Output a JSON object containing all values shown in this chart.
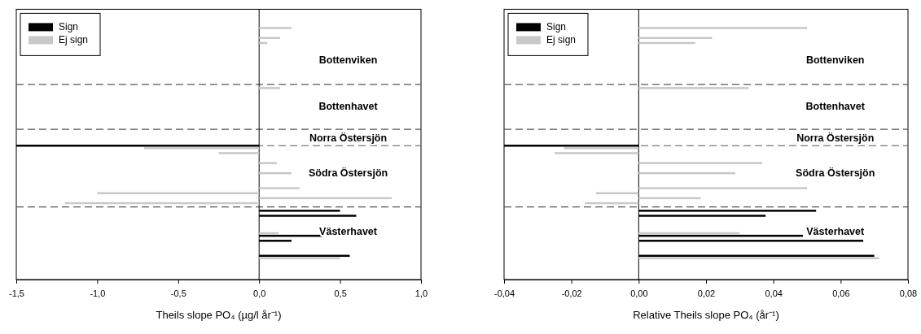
{
  "chart_data": [
    {
      "type": "bar",
      "orientation": "horizontal",
      "xlabel": "Theils slope PO₄ (µg/l år⁻¹)",
      "categories": [
        null,
        null,
        null,
        null,
        null,
        null,
        null,
        null,
        null,
        null,
        null,
        null,
        null,
        null,
        null,
        null,
        null,
        null,
        null,
        null,
        null,
        null,
        null,
        null,
        null,
        null,
        null,
        null,
        null,
        null,
        null,
        null,
        null,
        null,
        null,
        null,
        null,
        null,
        null,
        null,
        null,
        null,
        null,
        null,
        null,
        null,
        null,
        null,
        null,
        null,
        null,
        null,
        null,
        null
      ],
      "series": [
        {
          "name": "Sign",
          "color": "#000000",
          "values": [
            null,
            null,
            null,
            null,
            null,
            null,
            null,
            null,
            null,
            null,
            null,
            null,
            null,
            null,
            null,
            null,
            null,
            null,
            null,
            null,
            null,
            null,
            null,
            null,
            null,
            null,
            null,
            -1.5,
            null,
            null,
            null,
            null,
            null,
            null,
            null,
            null,
            null,
            null,
            null,
            null,
            0.5,
            0.6,
            null,
            null,
            null,
            0.39,
            0.2,
            null,
            null,
            0.56,
            null,
            null,
            null,
            null
          ]
        },
        {
          "name": "Ej sign",
          "color": "#c8c8c8",
          "values": [
            null,
            null,
            null,
            0.2,
            null,
            0.13,
            0.05,
            null,
            null,
            null,
            null,
            null,
            null,
            null,
            null,
            0.13,
            null,
            null,
            null,
            null,
            null,
            null,
            null,
            null,
            null,
            null,
            null,
            -0.71,
            -0.25,
            null,
            0.11,
            null,
            0.2,
            null,
            null,
            0.25,
            -1.0,
            0.82,
            -1.2,
            null,
            null,
            null,
            null,
            null,
            0.12,
            null,
            null,
            null,
            null,
            0.5,
            null,
            null,
            null,
            null
          ]
        }
      ],
      "xlim": [
        -1.5,
        1.0
      ],
      "xticks": [
        {
          "value": -1.5,
          "label": "-1,5"
        },
        {
          "value": -1.0,
          "label": "-1,0"
        },
        {
          "value": -0.5,
          "label": "-0,5"
        },
        {
          "value": 0,
          "label": "0,0"
        },
        {
          "value": 0.5,
          "label": "0,5"
        },
        {
          "value": 1.0,
          "label": "1,0"
        }
      ],
      "annotations": [
        "Bottenviken",
        "Bottenhavet",
        "Norra Östersjön",
        "Södra Östersjön",
        "Västerhavet"
      ],
      "legend": "top left",
      "grid": false
    },
    {
      "type": "bar",
      "orientation": "horizontal",
      "xlabel": "Relative Theils slope PO₄ (år⁻¹)",
      "categories": [
        null,
        null,
        null,
        null,
        null,
        null,
        null,
        null,
        null,
        null,
        null,
        null,
        null,
        null,
        null,
        null,
        null,
        null,
        null,
        null,
        null,
        null,
        null,
        null,
        null,
        null,
        null,
        null,
        null,
        null,
        null,
        null,
        null,
        null,
        null,
        null,
        null,
        null,
        null,
        null,
        null,
        null,
        null,
        null,
        null,
        null,
        null,
        null,
        null,
        null,
        null,
        null,
        null,
        null
      ],
      "series": [
        {
          "name": "Sign",
          "color": "#000000",
          "values": [
            null,
            null,
            null,
            null,
            null,
            null,
            null,
            null,
            null,
            null,
            null,
            null,
            null,
            null,
            null,
            null,
            null,
            null,
            null,
            null,
            null,
            null,
            null,
            null,
            null,
            null,
            null,
            -0.04,
            null,
            null,
            null,
            null,
            null,
            null,
            null,
            null,
            null,
            null,
            null,
            null,
            0.0527,
            0.0377,
            null,
            null,
            null,
            0.0488,
            0.0667,
            null,
            null,
            0.07,
            null,
            null,
            null,
            null
          ]
        },
        {
          "name": "Ej sign",
          "color": "#c8c8c8",
          "values": [
            null,
            null,
            null,
            0.05,
            null,
            0.0218,
            0.0168,
            null,
            null,
            null,
            null,
            null,
            null,
            null,
            null,
            0.0327,
            null,
            null,
            null,
            null,
            null,
            null,
            null,
            null,
            null,
            null,
            null,
            -0.0222,
            -0.025,
            null,
            0.0367,
            null,
            0.0287,
            null,
            null,
            0.05,
            -0.0127,
            0.0184,
            -0.016,
            null,
            null,
            null,
            null,
            null,
            0.03,
            null,
            null,
            null,
            null,
            0.0715,
            null,
            null,
            null,
            null
          ]
        }
      ],
      "xlim": [
        -0.04,
        0.08
      ],
      "xticks": [
        {
          "value": -0.04,
          "label": "-0,04"
        },
        {
          "value": -0.02,
          "label": "-0,02"
        },
        {
          "value": 0,
          "label": "0,00"
        },
        {
          "value": 0.02,
          "label": "0,02"
        },
        {
          "value": 0.04,
          "label": "0,04"
        },
        {
          "value": 0.06,
          "label": "0,06"
        },
        {
          "value": 0.08,
          "label": "0,08"
        }
      ],
      "annotations": [
        "Bottenviken",
        "Bottenhavet",
        "Norra Östersjön",
        "Södra Östersjön",
        "Västerhavet"
      ],
      "legend": "top left",
      "grid": false
    }
  ]
}
